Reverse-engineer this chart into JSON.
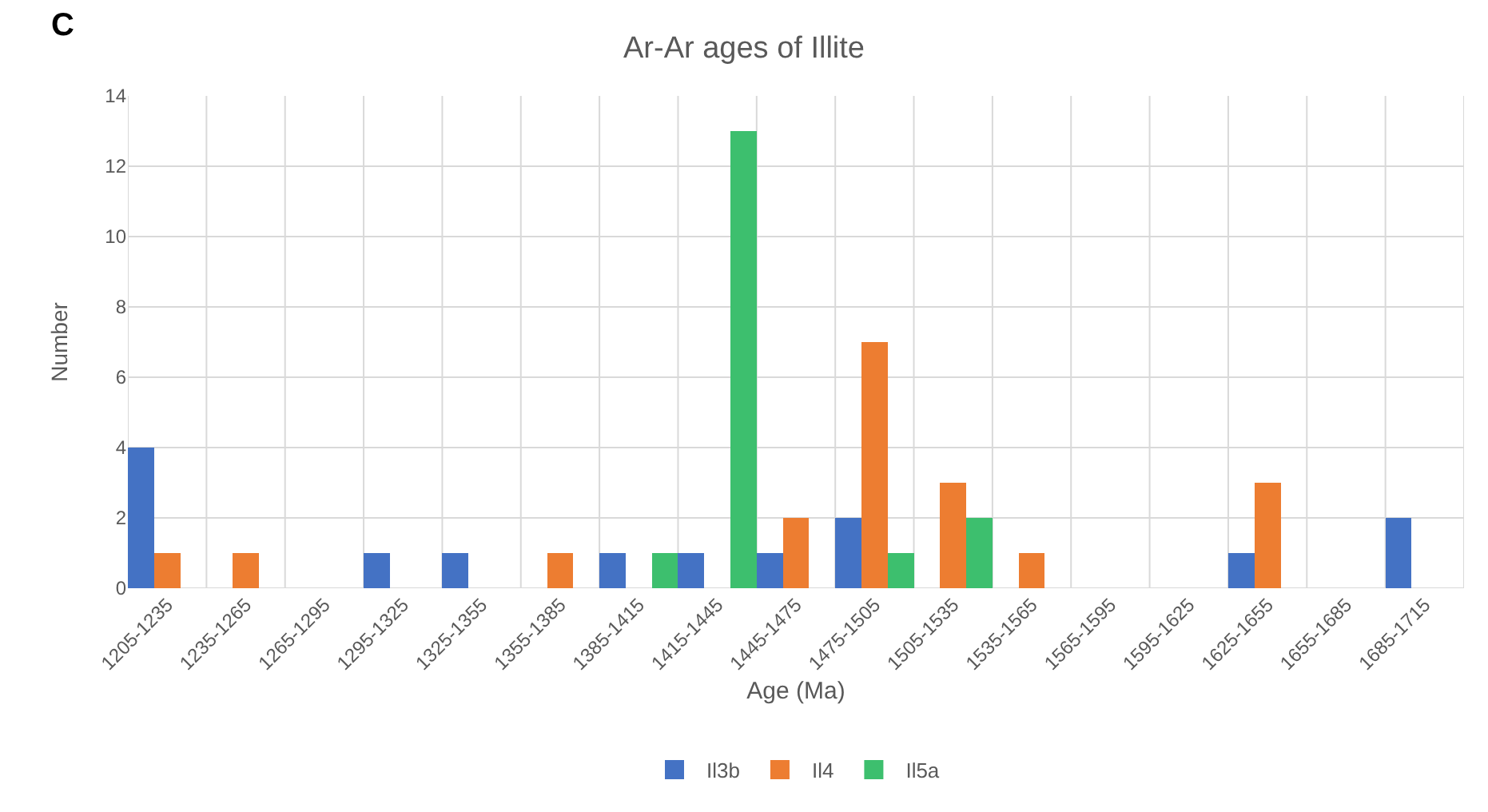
{
  "chart_data": {
    "type": "bar",
    "title": "Ar-Ar ages of Illite",
    "xlabel": "Age (Ma)",
    "ylabel": "Number",
    "annotations": [
      "C"
    ],
    "categories": [
      "1205-1235",
      "1235-1265",
      "1265-1295",
      "1295-1325",
      "1325-1355",
      "1355-1385",
      "1385-1415",
      "1415-1445",
      "1445-1475",
      "1475-1505",
      "1505-1535",
      "1535-1565",
      "1565-1595",
      "1595-1625",
      "1625-1655",
      "1655-1685",
      "1685-1715"
    ],
    "series": [
      {
        "name": "Il3b",
        "color": "#4472c4",
        "values": [
          4,
          0,
          0,
          1,
          1,
          0,
          1,
          1,
          1,
          2,
          0,
          0,
          0,
          0,
          1,
          0,
          2
        ]
      },
      {
        "name": "Il4",
        "color": "#ed7d31",
        "values": [
          1,
          1,
          0,
          0,
          0,
          1,
          0,
          0,
          2,
          7,
          3,
          1,
          0,
          0,
          3,
          0,
          0
        ]
      },
      {
        "name": "Il5a",
        "color": "#3dbf6e",
        "values": [
          0,
          0,
          0,
          0,
          0,
          0,
          1,
          13,
          0,
          1,
          2,
          0,
          0,
          0,
          0,
          0,
          0
        ]
      }
    ],
    "ylim": [
      0,
      14
    ],
    "yticks": [
      0,
      2,
      4,
      6,
      8,
      10,
      12,
      14
    ],
    "grid": true,
    "legend": "bottom"
  }
}
